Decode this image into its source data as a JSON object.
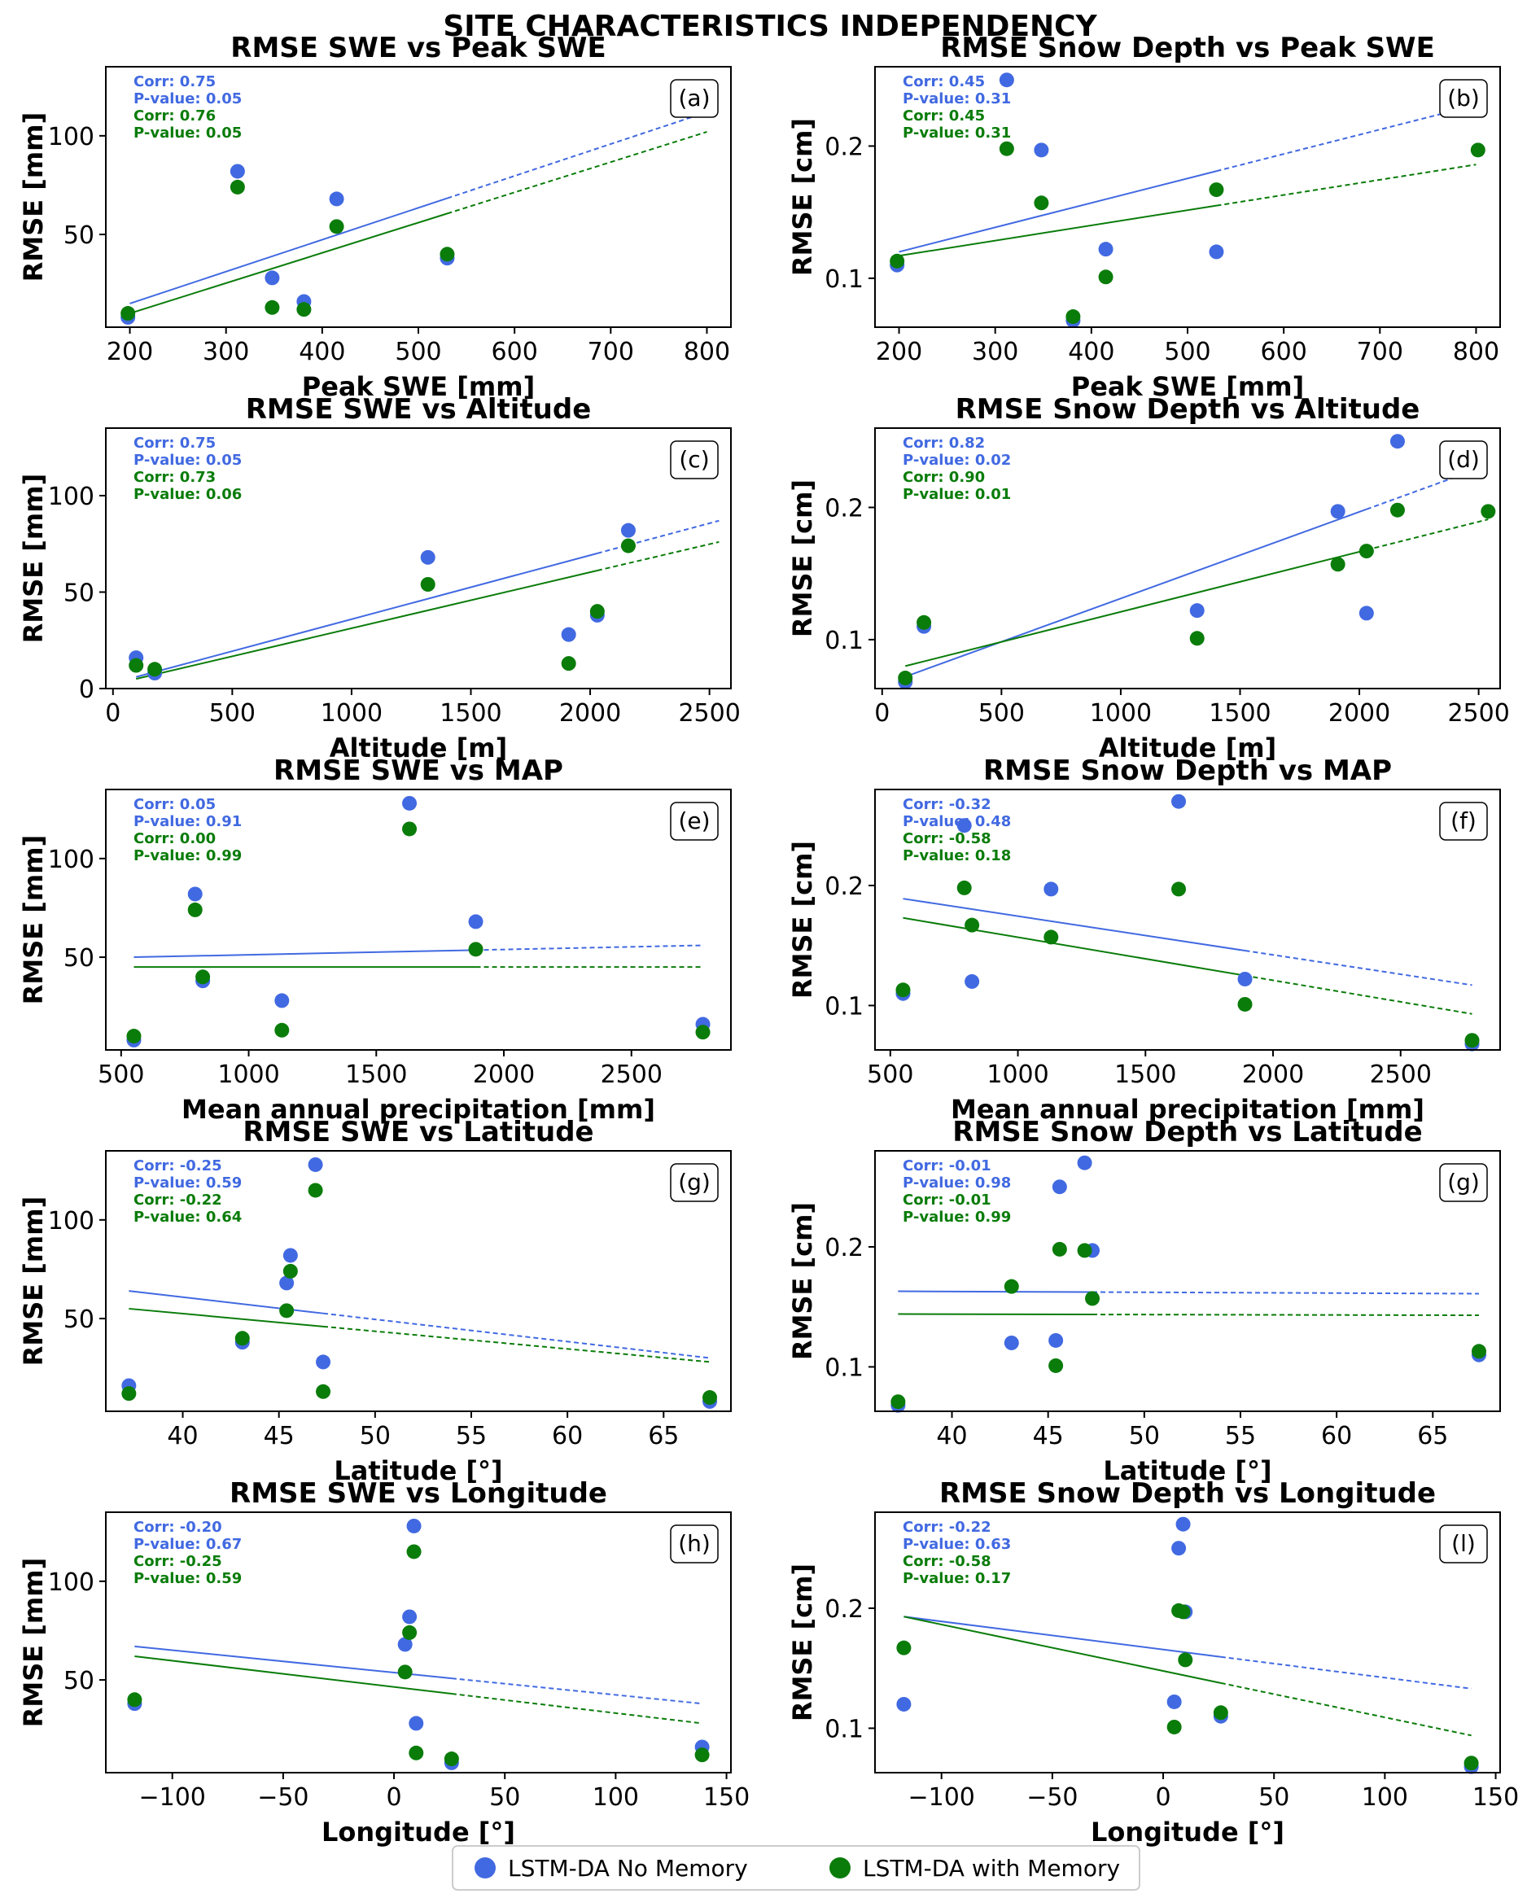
{
  "figure_title": "SITE CHARACTERISTICS INDEPENDENCY",
  "legend": {
    "no_memory": "LSTM-DA No Memory",
    "with_memory": "LSTM-DA with Memory"
  },
  "colors": {
    "no_memory": "#4169E1",
    "with_memory": "#0A7C0A"
  },
  "chart_data": [
    {
      "type": "scatter",
      "title": "RMSE SWE vs Peak SWE",
      "panel": "(a)",
      "xlabel": "Peak SWE [mm]",
      "ylabel": "RMSE [mm]",
      "xlim": [
        175,
        825
      ],
      "ylim": [
        3,
        135
      ],
      "xticks": [
        200,
        300,
        400,
        500,
        600,
        700,
        800
      ],
      "yticks": [
        50,
        100
      ],
      "xtick_labels": [
        "200",
        "300",
        "400",
        "500",
        "600",
        "700",
        "800"
      ],
      "ytick_labels": [
        "50",
        "100"
      ],
      "series": [
        {
          "name": "LSTM-DA No Memory",
          "x": [
            198,
            312,
            348,
            381,
            415,
            530
          ],
          "y": [
            8,
            82,
            28,
            16,
            68,
            38
          ],
          "corr": "Corr: 0.75",
          "pvalue": "P-value: 0.05",
          "fit": [
            [
              200,
              15
            ],
            [
              800,
              112
            ]
          ],
          "solid_xmax": 530
        },
        {
          "name": "LSTM-DA with Memory",
          "x": [
            198,
            312,
            348,
            381,
            415,
            530
          ],
          "y": [
            10,
            74,
            13,
            12,
            54,
            40
          ],
          "corr": "Corr: 0.76",
          "pvalue": "P-value: 0.05",
          "fit": [
            [
              200,
              10
            ],
            [
              800,
              102
            ]
          ],
          "solid_xmax": 530
        }
      ]
    },
    {
      "type": "scatter",
      "title": "RMSE Snow Depth vs Peak SWE",
      "panel": "(b)",
      "xlabel": "Peak SWE [mm]",
      "ylabel": "RMSE [cm]",
      "xlim": [
        175,
        825
      ],
      "ylim": [
        0.063,
        0.26
      ],
      "xticks": [
        200,
        300,
        400,
        500,
        600,
        700,
        800
      ],
      "yticks": [
        0.1,
        0.2
      ],
      "xtick_labels": [
        "200",
        "300",
        "400",
        "500",
        "600",
        "700",
        "800"
      ],
      "ytick_labels": [
        "0.1",
        "0.2"
      ],
      "series": [
        {
          "name": "LSTM-DA No Memory",
          "x": [
            198,
            312,
            348,
            381,
            415,
            530
          ],
          "y": [
            0.11,
            0.25,
            0.197,
            0.068,
            0.122,
            0.12
          ],
          "corr": "Corr: 0.45",
          "pvalue": "P-value: 0.31",
          "fit": [
            [
              200,
              0.12
            ],
            [
              800,
              0.231
            ]
          ],
          "solid_xmax": 530
        },
        {
          "name": "LSTM-DA with Memory",
          "x": [
            198,
            312,
            348,
            381,
            415,
            530,
            802
          ],
          "y": [
            0.113,
            0.198,
            0.157,
            0.071,
            0.101,
            0.167,
            0.197
          ],
          "corr": "Corr: 0.45",
          "pvalue": "P-value: 0.31",
          "fit": [
            [
              200,
              0.117
            ],
            [
              800,
              0.186
            ]
          ],
          "solid_xmax": 530
        }
      ]
    },
    {
      "type": "scatter",
      "title": "RMSE SWE  vs Altitude",
      "panel": "(c)",
      "xlabel": "Altitude [m]",
      "ylabel": "RMSE [mm]",
      "xlim": [
        -30,
        2590
      ],
      "ylim": [
        0,
        135
      ],
      "xticks": [
        0,
        500,
        1000,
        1500,
        2000,
        2500
      ],
      "yticks": [
        0,
        50,
        100
      ],
      "xtick_labels": [
        "0",
        "500",
        "1000",
        "1500",
        "2000",
        "2500"
      ],
      "ytick_labels": [
        "0",
        "50",
        "100"
      ],
      "series": [
        {
          "name": "LSTM-DA No Memory",
          "x": [
            97,
            175,
            1320,
            1910,
            2030,
            2160
          ],
          "y": [
            16,
            8,
            68,
            28,
            38,
            82
          ],
          "corr": "Corr: 0.75",
          "pvalue": "P-value: 0.05",
          "fit": [
            [
              97,
              6
            ],
            [
              2540,
              87
            ]
          ],
          "solid_xmax": 2030
        },
        {
          "name": "LSTM-DA with Memory",
          "x": [
            97,
            175,
            1320,
            1910,
            2030,
            2160
          ],
          "y": [
            12,
            10,
            54,
            13,
            40,
            74
          ],
          "corr": "Corr: 0.73",
          "pvalue": "P-value: 0.06",
          "fit": [
            [
              97,
              5
            ],
            [
              2540,
              76
            ]
          ],
          "solid_xmax": 2030
        }
      ]
    },
    {
      "type": "scatter",
      "title": "RMSE Snow Depth vs Altitude",
      "panel": "(d)",
      "xlabel": "Altitude [m]",
      "ylabel": "RMSE [cm]",
      "xlim": [
        -30,
        2590
      ],
      "ylim": [
        0.063,
        0.26
      ],
      "xticks": [
        0,
        500,
        1000,
        1500,
        2000,
        2500
      ],
      "yticks": [
        0.1,
        0.2
      ],
      "xtick_labels": [
        "0",
        "500",
        "1000",
        "1500",
        "2000",
        "2500"
      ],
      "ytick_labels": [
        "0.1",
        "0.2"
      ],
      "series": [
        {
          "name": "LSTM-DA No Memory",
          "x": [
            97,
            175,
            1320,
            1910,
            2030,
            2160
          ],
          "y": [
            0.068,
            0.11,
            0.122,
            0.197,
            0.12,
            0.25
          ],
          "corr": "Corr: 0.82",
          "pvalue": "P-value: 0.02",
          "fit": [
            [
              97,
              0.072
            ],
            [
              2540,
              0.232
            ]
          ],
          "solid_xmax": 2030
        },
        {
          "name": "LSTM-DA with Memory",
          "x": [
            97,
            175,
            1320,
            1910,
            2030,
            2160,
            2540
          ],
          "y": [
            0.071,
            0.113,
            0.101,
            0.157,
            0.167,
            0.198,
            0.197
          ],
          "corr": "Corr: 0.90",
          "pvalue": "P-value: 0.01",
          "fit": [
            [
              97,
              0.08
            ],
            [
              2540,
              0.191
            ]
          ],
          "solid_xmax": 2030
        }
      ]
    },
    {
      "type": "scatter",
      "title": "RMSE SWE vs MAP",
      "panel": "(e)",
      "xlabel": "Mean annual precipitation [mm]",
      "ylabel": "RMSE [mm]",
      "xlim": [
        440,
        2890
      ],
      "ylim": [
        3,
        135
      ],
      "xticks": [
        500,
        1000,
        1500,
        2000,
        2500
      ],
      "yticks": [
        50,
        100
      ],
      "xtick_labels": [
        "500",
        "1000",
        "1500",
        "2000",
        "2500"
      ],
      "ytick_labels": [
        "50",
        "100"
      ],
      "series": [
        {
          "name": "LSTM-DA No Memory",
          "x": [
            550,
            790,
            820,
            1130,
            1630,
            1890,
            2780
          ],
          "y": [
            8,
            82,
            38,
            28,
            128,
            68,
            16
          ],
          "corr": "Corr: 0.05",
          "pvalue": "P-value: 0.91",
          "fit": [
            [
              550,
              50
            ],
            [
              2780,
              56
            ]
          ],
          "solid_xmax": 1890
        },
        {
          "name": "LSTM-DA with Memory",
          "x": [
            550,
            790,
            820,
            1130,
            1630,
            1890,
            2780
          ],
          "y": [
            10,
            74,
            40,
            13,
            115,
            54,
            12
          ],
          "corr": "Corr: 0.00",
          "pvalue": "P-value: 0.99",
          "fit": [
            [
              550,
              45
            ],
            [
              2780,
              45
            ]
          ],
          "solid_xmax": 1890
        }
      ]
    },
    {
      "type": "scatter",
      "title": "RMSE Snow Depth vs MAP",
      "panel": "(f)",
      "xlabel": "Mean annual precipitation [mm]",
      "ylabel": "RMSE [cm]",
      "xlim": [
        440,
        2890
      ],
      "ylim": [
        0.063,
        0.28
      ],
      "xticks": [
        500,
        1000,
        1500,
        2000,
        2500
      ],
      "yticks": [
        0.1,
        0.2
      ],
      "xtick_labels": [
        "500",
        "1000",
        "1500",
        "2000",
        "2500"
      ],
      "ytick_labels": [
        "0.1",
        "0.2"
      ],
      "series": [
        {
          "name": "LSTM-DA No Memory",
          "x": [
            550,
            790,
            820,
            1130,
            1630,
            1890,
            2780
          ],
          "y": [
            0.11,
            0.25,
            0.12,
            0.197,
            0.27,
            0.122,
            0.068
          ],
          "corr": "Corr: -0.32",
          "pvalue": "P-value: 0.48",
          "fit": [
            [
              550,
              0.189
            ],
            [
              2780,
              0.117
            ]
          ],
          "solid_xmax": 1890
        },
        {
          "name": "LSTM-DA with Memory",
          "x": [
            550,
            790,
            820,
            1130,
            1630,
            1890,
            2780
          ],
          "y": [
            0.113,
            0.198,
            0.167,
            0.157,
            0.197,
            0.101,
            0.071
          ],
          "corr": "Corr: -0.58",
          "pvalue": "P-value: 0.18",
          "fit": [
            [
              550,
              0.173
            ],
            [
              2780,
              0.093
            ]
          ],
          "solid_xmax": 1890
        }
      ]
    },
    {
      "type": "scatter",
      "title": "RMSE SWE vs Latitude",
      "panel": "(g)",
      "xlabel": "Latitude [°]",
      "ylabel": "RMSE [mm]",
      "xlim": [
        36,
        68.5
      ],
      "ylim": [
        3,
        135
      ],
      "xticks": [
        40,
        45,
        50,
        55,
        60,
        65
      ],
      "yticks": [
        50,
        100
      ],
      "xtick_labels": [
        "40",
        "45",
        "50",
        "55",
        "60",
        "65"
      ],
      "ytick_labels": [
        "50",
        "100"
      ],
      "series": [
        {
          "name": "LSTM-DA No Memory",
          "x": [
            37.2,
            43.1,
            45.4,
            45.6,
            46.9,
            47.3,
            67.4
          ],
          "y": [
            16,
            38,
            68,
            82,
            128,
            28,
            8
          ],
          "corr": "Corr: -0.25",
          "pvalue": "P-value: 0.59",
          "fit": [
            [
              37.2,
              64
            ],
            [
              67.4,
              30
            ]
          ],
          "solid_xmax": 47.3
        },
        {
          "name": "LSTM-DA with Memory",
          "x": [
            37.2,
            43.1,
            45.4,
            45.6,
            46.9,
            47.3,
            67.4
          ],
          "y": [
            12,
            40,
            54,
            74,
            115,
            13,
            10
          ],
          "corr": "Corr: -0.22",
          "pvalue": "P-value: 0.64",
          "fit": [
            [
              37.2,
              55
            ],
            [
              67.4,
              28
            ]
          ],
          "solid_xmax": 47.3
        }
      ]
    },
    {
      "type": "scatter",
      "title": "RMSE Snow Depth vs Latitude",
      "panel": "(g)",
      "xlabel": "Latitude [°]",
      "ylabel": "RMSE [cm]",
      "xlim": [
        36,
        68.5
      ],
      "ylim": [
        0.063,
        0.28
      ],
      "xticks": [
        40,
        45,
        50,
        55,
        60,
        65
      ],
      "yticks": [
        0.1,
        0.2
      ],
      "xtick_labels": [
        "40",
        "45",
        "50",
        "55",
        "60",
        "65"
      ],
      "ytick_labels": [
        "0.1",
        "0.2"
      ],
      "series": [
        {
          "name": "LSTM-DA No Memory",
          "x": [
            37.2,
            43.1,
            45.4,
            45.6,
            46.9,
            47.3,
            67.4
          ],
          "y": [
            0.068,
            0.12,
            0.122,
            0.25,
            0.27,
            0.197,
            0.11
          ],
          "corr": "Corr: -0.01",
          "pvalue": "P-value: 0.98",
          "fit": [
            [
              37.2,
              0.163
            ],
            [
              67.4,
              0.161
            ]
          ],
          "solid_xmax": 47.3
        },
        {
          "name": "LSTM-DA with Memory",
          "x": [
            37.2,
            43.1,
            45.4,
            45.6,
            46.9,
            47.3,
            67.4
          ],
          "y": [
            0.071,
            0.167,
            0.101,
            0.198,
            0.197,
            0.157,
            0.113
          ],
          "corr": "Corr: -0.01",
          "pvalue": "P-value: 0.99",
          "fit": [
            [
              37.2,
              0.144
            ],
            [
              67.4,
              0.143
            ]
          ],
          "solid_xmax": 47.3
        }
      ]
    },
    {
      "type": "scatter",
      "title": "RMSE SWE vs Longitude",
      "panel": "(h)",
      "xlabel": "Longitude [°]",
      "ylabel": "RMSE [mm]",
      "xlim": [
        -130,
        152
      ],
      "ylim": [
        3,
        135
      ],
      "xticks": [
        -100,
        -50,
        0,
        50,
        100,
        150
      ],
      "yticks": [
        50,
        100
      ],
      "xtick_labels": [
        "−100",
        "−50",
        "0",
        "50",
        "100",
        "150"
      ],
      "ytick_labels": [
        "50",
        "100"
      ],
      "series": [
        {
          "name": "LSTM-DA No Memory",
          "x": [
            -117,
            5,
            7,
            9,
            10,
            26,
            139
          ],
          "y": [
            38,
            68,
            82,
            128,
            28,
            8,
            16
          ],
          "corr": "Corr: -0.20",
          "pvalue": "P-value: 0.67",
          "fit": [
            [
              -117,
              67
            ],
            [
              139,
              38
            ]
          ],
          "solid_xmax": 26
        },
        {
          "name": "LSTM-DA with Memory",
          "x": [
            -117,
            5,
            7,
            9,
            10,
            26,
            139
          ],
          "y": [
            40,
            54,
            74,
            115,
            13,
            10,
            12
          ],
          "corr": "Corr: -0.25",
          "pvalue": "P-value: 0.59",
          "fit": [
            [
              -117,
              62
            ],
            [
              139,
              28
            ]
          ],
          "solid_xmax": 26
        }
      ]
    },
    {
      "type": "scatter",
      "title": "RMSE Snow Depth vs Longitude",
      "panel": "(l)",
      "xlabel": "Longitude [°]",
      "ylabel": "RMSE [cm]",
      "xlim": [
        -130,
        152
      ],
      "ylim": [
        0.063,
        0.28
      ],
      "xticks": [
        -100,
        -50,
        0,
        50,
        100,
        150
      ],
      "yticks": [
        0.1,
        0.2
      ],
      "xtick_labels": [
        "−100",
        "−50",
        "0",
        "50",
        "100",
        "150"
      ],
      "ytick_labels": [
        "0.1",
        "0.2"
      ],
      "series": [
        {
          "name": "LSTM-DA No Memory",
          "x": [
            -117,
            5,
            7,
            9,
            10,
            26,
            139
          ],
          "y": [
            0.12,
            0.122,
            0.25,
            0.27,
            0.197,
            0.11,
            0.068
          ],
          "corr": "Corr: -0.22",
          "pvalue": "P-value: 0.63",
          "fit": [
            [
              -117,
              0.193
            ],
            [
              139,
              0.133
            ]
          ],
          "solid_xmax": 26
        },
        {
          "name": "LSTM-DA with Memory",
          "x": [
            -117,
            5,
            7,
            9,
            10,
            26,
            139
          ],
          "y": [
            0.167,
            0.101,
            0.198,
            0.197,
            0.157,
            0.113,
            0.071
          ],
          "corr": "Corr: -0.58",
          "pvalue": "P-value: 0.17",
          "fit": [
            [
              -117,
              0.193
            ],
            [
              139,
              0.094
            ]
          ],
          "solid_xmax": 26
        }
      ]
    }
  ]
}
